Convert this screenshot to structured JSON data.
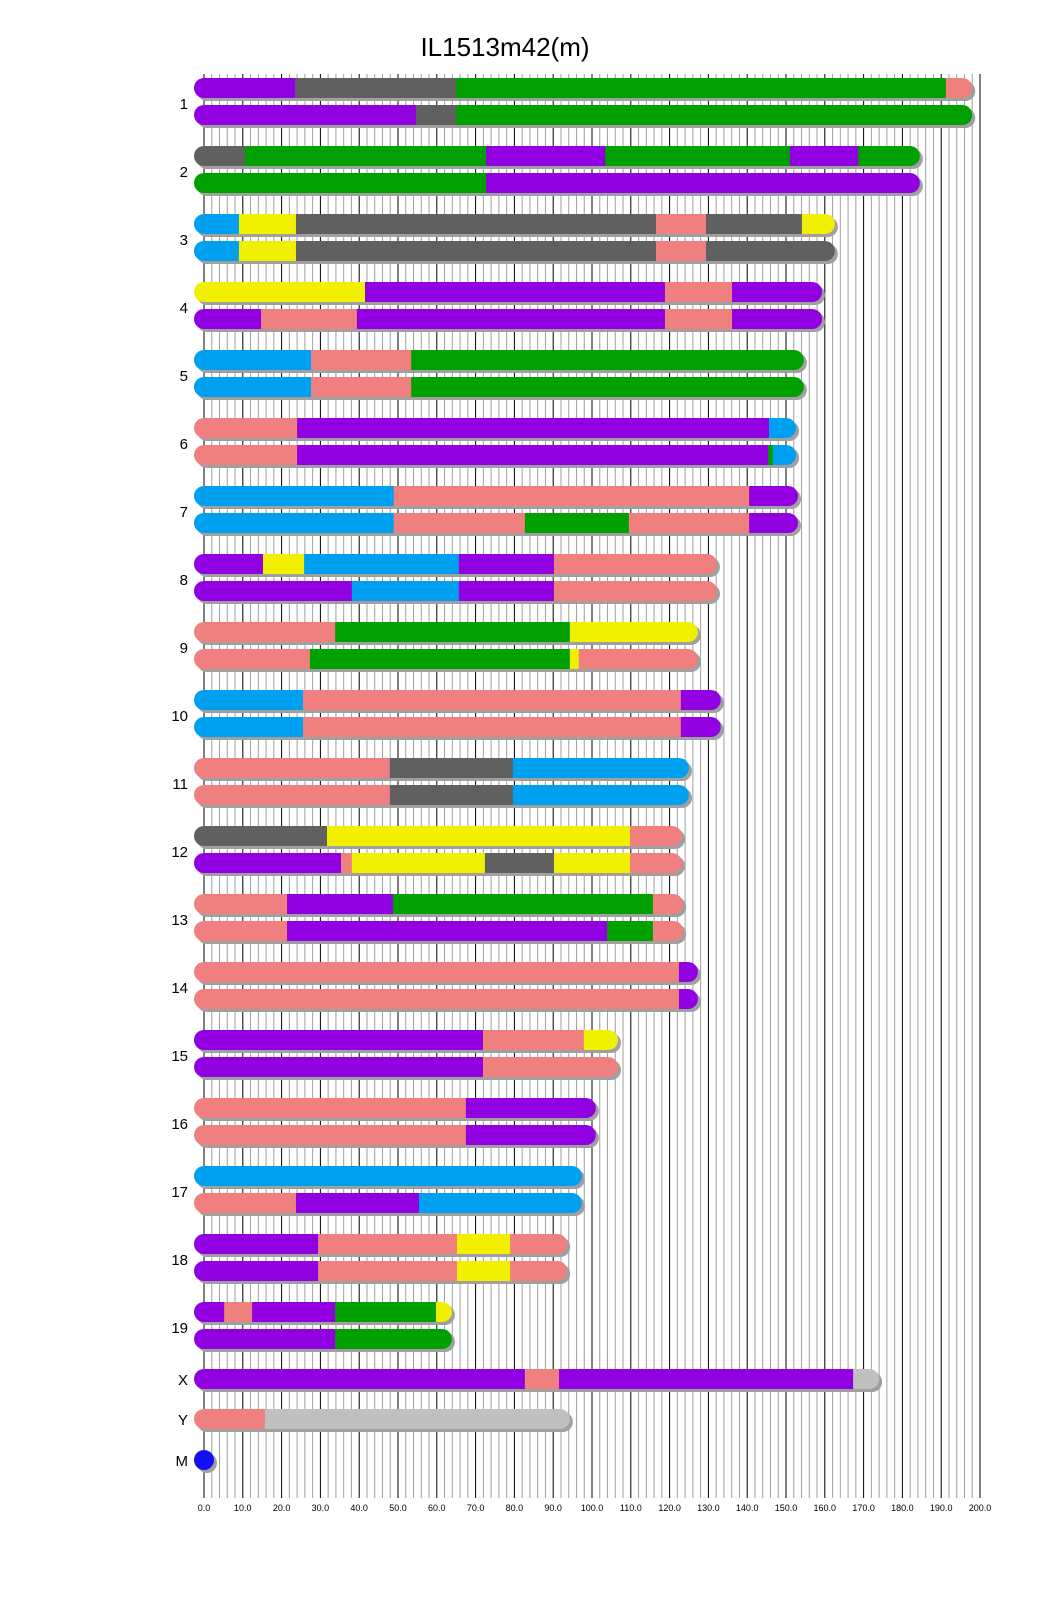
{
  "chart_data": {
    "type": "chromosome-painting",
    "title": "IL1513m42(m)",
    "xlabel": "",
    "ylabel": "",
    "xlim": [
      0,
      200
    ],
    "x_major_tick_step": 10,
    "x_minor_grid_step": 2,
    "x_tick_labels": [
      "0.0",
      "10.0",
      "20.0",
      "30.0",
      "40.0",
      "50.0",
      "60.0",
      "70.0",
      "80.0",
      "90.0",
      "100.0",
      "110.0",
      "120.0",
      "130.0",
      "140.0",
      "150.0",
      "160.0",
      "170.0",
      "180.0",
      "190.0",
      "200.0"
    ],
    "grid": true,
    "colors": {
      "purple": "#9000E0",
      "gray": "#606060",
      "green": "#00A000",
      "salmon": "#F08080",
      "blue": "#00A0F0",
      "yellow": "#F0F000",
      "lightgray": "#C0C0C0",
      "mito": "#1010F0"
    },
    "chromosomes": [
      {
        "name": "1",
        "haplotypes": [
          [
            [
              0,
              23.5,
              "purple"
            ],
            [
              23.5,
              65,
              "gray"
            ],
            [
              65,
              191.2,
              "green"
            ],
            [
              191.2,
              198,
              "salmon"
            ]
          ],
          [
            [
              0,
              54.6,
              "purple"
            ],
            [
              54.6,
              65,
              "gray"
            ],
            [
              65,
              198,
              "green"
            ]
          ]
        ]
      },
      {
        "name": "2",
        "haplotypes": [
          [
            [
              0,
              10.6,
              "gray"
            ],
            [
              10.6,
              72.7,
              "green"
            ],
            [
              72.7,
              103.4,
              "purple"
            ],
            [
              103.4,
              151,
              "green"
            ],
            [
              151,
              168.6,
              "purple"
            ],
            [
              168.6,
              184.5,
              "green"
            ]
          ],
          [
            [
              0,
              72.7,
              "green"
            ],
            [
              72.7,
              184.5,
              "purple"
            ]
          ]
        ]
      },
      {
        "name": "3",
        "haplotypes": [
          [
            [
              0,
              9,
              "blue"
            ],
            [
              9,
              23.7,
              "yellow"
            ],
            [
              23.7,
              116.5,
              "gray"
            ],
            [
              116.5,
              129.4,
              "salmon"
            ],
            [
              129.4,
              154.1,
              "gray"
            ],
            [
              154.1,
              162.6,
              "yellow"
            ]
          ],
          [
            [
              0,
              9,
              "blue"
            ],
            [
              9,
              23.7,
              "yellow"
            ],
            [
              23.7,
              116.5,
              "gray"
            ],
            [
              116.5,
              129.4,
              "salmon"
            ],
            [
              129.4,
              162.6,
              "gray"
            ]
          ]
        ]
      },
      {
        "name": "4",
        "haplotypes": [
          [
            [
              0,
              41.5,
              "yellow"
            ],
            [
              41.5,
              118.8,
              "purple"
            ],
            [
              118.8,
              136.1,
              "salmon"
            ],
            [
              136.1,
              159.3,
              "purple"
            ]
          ],
          [
            [
              0,
              14.7,
              "purple"
            ],
            [
              14.7,
              39.4,
              "salmon"
            ],
            [
              39.4,
              118.8,
              "purple"
            ],
            [
              118.8,
              136.1,
              "salmon"
            ],
            [
              136.1,
              159.3,
              "purple"
            ]
          ]
        ]
      },
      {
        "name": "5",
        "haplotypes": [
          [
            [
              0,
              27.6,
              "blue"
            ],
            [
              27.6,
              53.4,
              "salmon"
            ],
            [
              53.4,
              154.6,
              "green"
            ]
          ],
          [
            [
              0,
              27.6,
              "blue"
            ],
            [
              27.6,
              53.4,
              "salmon"
            ],
            [
              53.4,
              154.6,
              "green"
            ]
          ]
        ]
      },
      {
        "name": "6",
        "haplotypes": [
          [
            [
              0,
              24,
              "salmon"
            ],
            [
              24,
              145.6,
              "purple"
            ],
            [
              145.6,
              152.6,
              "blue"
            ]
          ],
          [
            [
              0,
              24,
              "salmon"
            ],
            [
              24,
              145.4,
              "purple"
            ],
            [
              145.4,
              146.6,
              "green"
            ],
            [
              146.6,
              152.6,
              "blue"
            ]
          ]
        ]
      },
      {
        "name": "7",
        "haplotypes": [
          [
            [
              0,
              48.9,
              "blue"
            ],
            [
              48.9,
              140.5,
              "salmon"
            ],
            [
              140.5,
              153.1,
              "purple"
            ]
          ],
          [
            [
              0,
              48.9,
              "blue"
            ],
            [
              48.9,
              82.7,
              "salmon"
            ],
            [
              82.7,
              109.5,
              "green"
            ],
            [
              109.5,
              140.5,
              "salmon"
            ],
            [
              140.5,
              153.1,
              "purple"
            ]
          ]
        ]
      },
      {
        "name": "8",
        "haplotypes": [
          [
            [
              0,
              15.2,
              "purple"
            ],
            [
              15.2,
              25.8,
              "yellow"
            ],
            [
              25.8,
              65.7,
              "blue"
            ],
            [
              65.7,
              90.2,
              "purple"
            ],
            [
              90.2,
              132.2,
              "salmon"
            ]
          ],
          [
            [
              0,
              38.1,
              "purple"
            ],
            [
              38.1,
              65.7,
              "blue"
            ],
            [
              65.7,
              90.2,
              "purple"
            ],
            [
              90.2,
              132.2,
              "salmon"
            ]
          ]
        ]
      },
      {
        "name": "9",
        "haplotypes": [
          [
            [
              0,
              33.8,
              "salmon"
            ],
            [
              33.8,
              94.3,
              "green"
            ],
            [
              94.3,
              127.3,
              "yellow"
            ]
          ],
          [
            [
              0,
              27.3,
              "salmon"
            ],
            [
              27.3,
              94.3,
              "green"
            ],
            [
              94.3,
              96.6,
              "yellow"
            ],
            [
              96.6,
              127.3,
              "salmon"
            ]
          ]
        ]
      },
      {
        "name": "10",
        "haplotypes": [
          [
            [
              0,
              25.5,
              "blue"
            ],
            [
              25.5,
              122.9,
              "salmon"
            ],
            [
              122.9,
              133.2,
              "purple"
            ]
          ],
          [
            [
              0,
              25.5,
              "blue"
            ],
            [
              25.5,
              122.9,
              "salmon"
            ],
            [
              122.9,
              133.2,
              "purple"
            ]
          ]
        ]
      },
      {
        "name": "11",
        "haplotypes": [
          [
            [
              0,
              47.9,
              "salmon"
            ],
            [
              47.9,
              79.6,
              "gray"
            ],
            [
              79.6,
              125,
              "blue"
            ]
          ],
          [
            [
              0,
              47.9,
              "salmon"
            ],
            [
              47.9,
              79.6,
              "gray"
            ],
            [
              79.6,
              125,
              "blue"
            ]
          ]
        ]
      },
      {
        "name": "12",
        "haplotypes": [
          [
            [
              0,
              31.7,
              "gray"
            ],
            [
              31.7,
              109.8,
              "yellow"
            ],
            [
              109.8,
              123.2,
              "salmon"
            ]
          ],
          [
            [
              0,
              35.3,
              "purple"
            ],
            [
              35.3,
              38.1,
              "salmon"
            ],
            [
              38.1,
              72.4,
              "yellow"
            ],
            [
              72.4,
              90.2,
              "gray"
            ],
            [
              90.2,
              109.8,
              "yellow"
            ],
            [
              109.8,
              123.2,
              "salmon"
            ]
          ]
        ]
      },
      {
        "name": "13",
        "haplotypes": [
          [
            [
              0,
              21.4,
              "salmon"
            ],
            [
              21.4,
              48.7,
              "purple"
            ],
            [
              48.7,
              115.7,
              "green"
            ],
            [
              115.7,
              123.5,
              "salmon"
            ]
          ],
          [
            [
              0,
              21.4,
              "salmon"
            ],
            [
              21.4,
              103.9,
              "purple"
            ],
            [
              103.9,
              115.7,
              "green"
            ],
            [
              115.7,
              123.5,
              "salmon"
            ]
          ]
        ]
      },
      {
        "name": "14",
        "haplotypes": [
          [
            [
              0,
              122.4,
              "salmon"
            ],
            [
              122.4,
              127.3,
              "purple"
            ]
          ],
          [
            [
              0,
              122.4,
              "salmon"
            ],
            [
              122.4,
              127.3,
              "purple"
            ]
          ]
        ]
      },
      {
        "name": "15",
        "haplotypes": [
          [
            [
              0,
              71.9,
              "purple"
            ],
            [
              71.9,
              97.9,
              "salmon"
            ],
            [
              97.9,
              106.7,
              "yellow"
            ]
          ],
          [
            [
              0,
              71.9,
              "purple"
            ],
            [
              71.9,
              106.7,
              "salmon"
            ]
          ]
        ]
      },
      {
        "name": "16",
        "haplotypes": [
          [
            [
              0,
              67.5,
              "salmon"
            ],
            [
              67.5,
              101,
              "purple"
            ]
          ],
          [
            [
              0,
              67.5,
              "salmon"
            ],
            [
              67.5,
              101,
              "purple"
            ]
          ]
        ]
      },
      {
        "name": "17",
        "haplotypes": [
          [
            [
              0,
              97.4,
              "blue"
            ]
          ],
          [
            [
              0,
              23.7,
              "salmon"
            ],
            [
              23.7,
              55.4,
              "purple"
            ],
            [
              55.4,
              97.4,
              "blue"
            ]
          ]
        ]
      },
      {
        "name": "18",
        "haplotypes": [
          [
            [
              0,
              29.4,
              "purple"
            ],
            [
              29.4,
              65.2,
              "salmon"
            ],
            [
              65.2,
              78.9,
              "yellow"
            ],
            [
              78.9,
              93.6,
              "salmon"
            ]
          ],
          [
            [
              0,
              29.4,
              "purple"
            ],
            [
              29.4,
              65.2,
              "salmon"
            ],
            [
              65.2,
              78.9,
              "yellow"
            ],
            [
              78.9,
              93.6,
              "salmon"
            ]
          ]
        ]
      },
      {
        "name": "19",
        "haplotypes": [
          [
            [
              0,
              5.2,
              "purple"
            ],
            [
              5.2,
              12.4,
              "salmon"
            ],
            [
              12.4,
              33.8,
              "purple"
            ],
            [
              33.8,
              59.8,
              "green"
            ],
            [
              59.8,
              63.9,
              "yellow"
            ]
          ],
          [
            [
              0,
              33.8,
              "purple"
            ],
            [
              33.8,
              63.9,
              "green"
            ]
          ]
        ]
      },
      {
        "name": "X",
        "haplotypes": [
          [
            [
              0,
              82.7,
              "purple"
            ],
            [
              82.7,
              91.5,
              "salmon"
            ],
            [
              91.5,
              167.3,
              "purple"
            ],
            [
              167.3,
              174,
              "lightgray"
            ]
          ]
        ]
      },
      {
        "name": "Y",
        "haplotypes": [
          [
            [
              0,
              15.7,
              "salmon"
            ],
            [
              15.7,
              94.3,
              "lightgray"
            ]
          ]
        ]
      },
      {
        "name": "M",
        "haplotypes": [
          [
            [
              0,
              0.1,
              "mito"
            ]
          ]
        ]
      }
    ]
  }
}
